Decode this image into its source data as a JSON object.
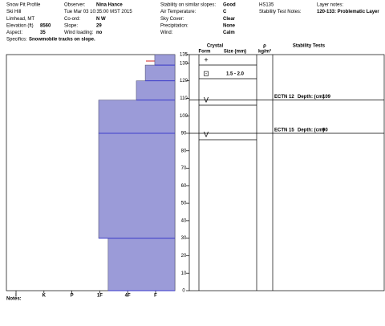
{
  "header": {
    "rows": [
      [
        {
          "label": "Snow Pit Profile"
        },
        {
          "label": "Observer:",
          "value": "Nina Hance"
        },
        {
          "label": "Stability on similar slopes:",
          "value": "Good"
        },
        {
          "label": "HS135"
        },
        {
          "label": "Layer notes:"
        }
      ],
      [
        {
          "label": "Ski Hill"
        },
        {
          "label": "Tue Mar 03 10:35:00 MST 2015"
        },
        {
          "label": "Air Temperature:",
          "value": "C"
        },
        {
          "label": "Stability Test Notes:",
          "value": "120-133: Problematic Layer"
        }
      ],
      [
        {
          "label": "Limhead, MT"
        },
        {
          "label": "Co-ord:",
          "value": "N  W"
        },
        {
          "label": "Sky Cover:",
          "value": "Clear"
        }
      ],
      [
        {
          "label": "Elevation (ft)",
          "value": "8560"
        },
        {
          "label": "Slope:",
          "value": "29"
        },
        {
          "label": "Precipitation:",
          "value": "None"
        }
      ],
      [
        {
          "label": "Aspect:",
          "value": "35"
        },
        {
          "label": "Wind loading:",
          "value": "no"
        },
        {
          "label": "Wind:",
          "value": "Calm"
        }
      ],
      [
        {
          "label": "Specifics:",
          "value": "Snowmobile tracks on slope."
        }
      ]
    ]
  },
  "columns": {
    "crystal": "Crystal",
    "form": "Form",
    "size": "Size (mm)",
    "rho": "ρ",
    "density": "kg/m³",
    "tests": "Stability Tests"
  },
  "crystals": [
    {
      "form": "+"
    },
    {
      "form": "⊡",
      "size": "1.5 - 2.0"
    },
    {
      "form": "V"
    },
    {
      "form": "V"
    }
  ],
  "tests": [
    {
      "test": "ECTN 12",
      "depth_label": "Depth: (cm)",
      "depth": 109
    },
    {
      "test": "ECTN 15",
      "depth_label": "Depth: (cm)",
      "depth": 90
    }
  ],
  "notes": "Notes:",
  "chart_data": {
    "type": "bar",
    "color": "#9b9bd8",
    "edge_color": "#3c3ccc",
    "layers": [
      {
        "bottom": 0,
        "top": 30,
        "hardness": 4.3
      },
      {
        "bottom": 30,
        "top": 90,
        "hardness": 3.96
      },
      {
        "bottom": 90,
        "top": 109,
        "hardness": 3.96
      },
      {
        "bottom": 109,
        "top": 120,
        "hardness": 5.31
      },
      {
        "bottom": 120,
        "top": 129,
        "hardness": 5.63
      },
      {
        "bottom": 129,
        "top": 135,
        "hardness": 5.97
      }
    ],
    "ylim": [
      0,
      135
    ],
    "yticks": [
      0,
      10,
      20,
      30,
      40,
      50,
      60,
      70,
      80,
      90,
      100,
      110,
      120,
      130,
      135
    ],
    "xlim": [
      0.655,
      6.69
    ],
    "xticks": [
      {
        "value": 1,
        "label": "I"
      },
      {
        "value": 2,
        "label": "K"
      },
      {
        "value": 3,
        "label": "P"
      },
      {
        "value": 4,
        "label": "1F"
      },
      {
        "value": 5,
        "label": "4F"
      },
      {
        "value": 6,
        "label": "F"
      }
    ]
  }
}
